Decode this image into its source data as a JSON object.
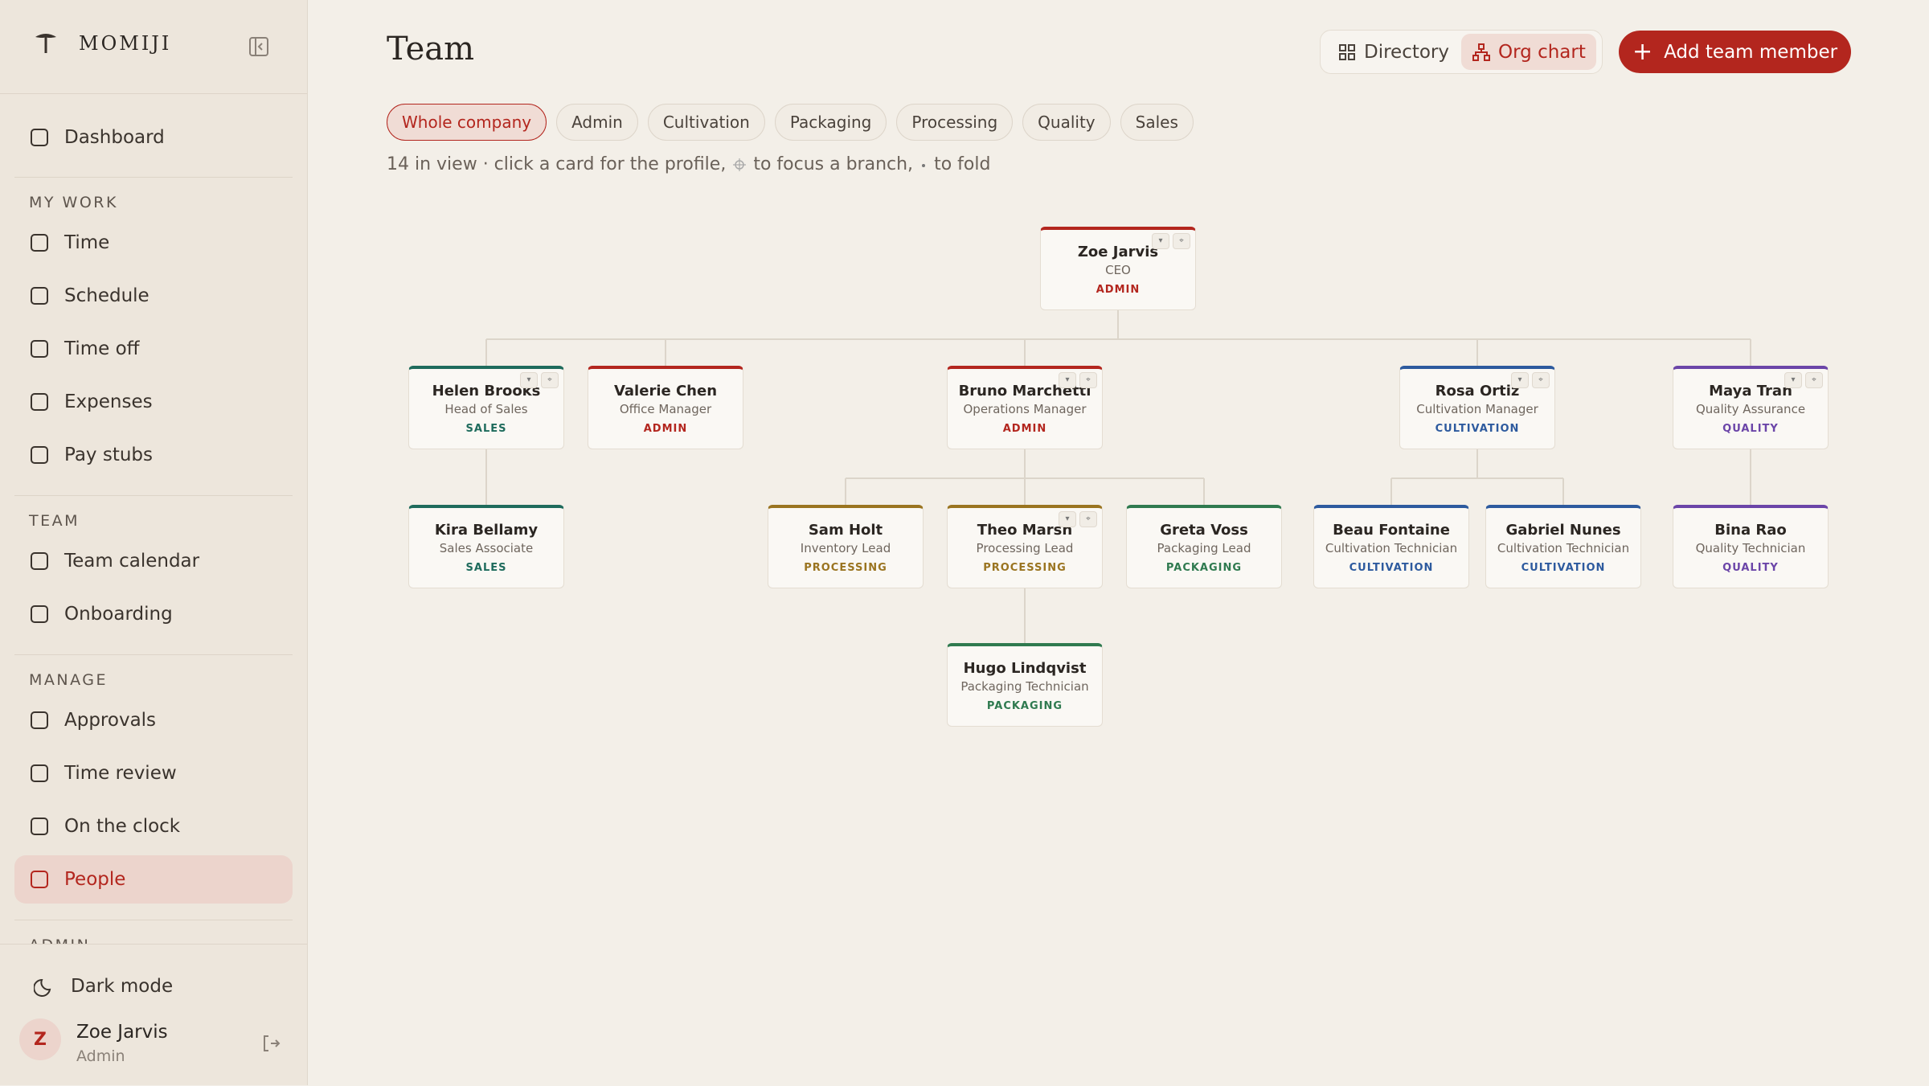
{
  "sidebar": {
    "brand": "MOMIJI",
    "top": [
      {
        "label": "Dashboard"
      }
    ],
    "sections": [
      {
        "title": "MY WORK",
        "items": [
          {
            "label": "Time"
          },
          {
            "label": "Schedule"
          },
          {
            "label": "Time off"
          },
          {
            "label": "Expenses"
          },
          {
            "label": "Pay stubs"
          }
        ]
      },
      {
        "title": "TEAM",
        "items": [
          {
            "label": "Team calendar"
          },
          {
            "label": "Onboarding"
          }
        ]
      },
      {
        "title": "MANAGE",
        "items": [
          {
            "label": "Approvals"
          },
          {
            "label": "Time review"
          },
          {
            "label": "On the clock"
          },
          {
            "label": "People"
          }
        ]
      },
      {
        "title": "ADMIN",
        "items": []
      }
    ],
    "footer": {
      "dark_mode": "Dark mode",
      "user": {
        "initial": "Z",
        "name": "Zoe Jarvis",
        "role": "Admin"
      }
    }
  },
  "header": {
    "title": "Team",
    "views": [
      "Directory",
      "Org chart"
    ],
    "add_button": "Add team member"
  },
  "filters": [
    "Whole company",
    "Admin",
    "Cultivation",
    "Packaging",
    "Processing",
    "Quality",
    "Sales"
  ],
  "hint": {
    "count": "14 in view · click a card for the profile,",
    "focus": "to focus a branch,",
    "fold": "to fold"
  },
  "org": {
    "root": {
      "name": "Zoe Jarvis",
      "role": "CEO",
      "dept": "ADMIN",
      "color": "#b3261e",
      "reports": [
        {
          "name": "Helen Brooks",
          "role": "Head of Sales",
          "dept": "SALES",
          "color": "#1e6b5c",
          "reports": [
            {
              "name": "Kira Bellamy",
              "role": "Sales Associate",
              "dept": "SALES",
              "color": "#1e6b5c",
              "reports": []
            }
          ]
        },
        {
          "name": "Valerie Chen",
          "role": "Office Manager",
          "dept": "ADMIN",
          "color": "#b3261e",
          "reports": []
        },
        {
          "name": "Bruno Marchetti",
          "role": "Operations Manager",
          "dept": "ADMIN",
          "color": "#b3261e",
          "reports": [
            {
              "name": "Sam Holt",
              "role": "Inventory Lead",
              "dept": "PROCESSING",
              "color": "#9a7420",
              "reports": []
            },
            {
              "name": "Theo Marsh",
              "role": "Processing Lead",
              "dept": "PROCESSING",
              "color": "#9a7420",
              "reports": [
                {
                  "name": "Hugo Lindqvist",
                  "role": "Packaging Technician",
                  "dept": "PACKAGING",
                  "color": "#2f7a4f",
                  "reports": []
                }
              ]
            },
            {
              "name": "Greta Voss",
              "role": "Packaging Lead",
              "dept": "PACKAGING",
              "color": "#2f7a4f",
              "reports": []
            }
          ]
        },
        {
          "name": "Rosa Ortiz",
          "role": "Cultivation Manager",
          "dept": "CULTIVATION",
          "color": "#2d5a9e",
          "reports": [
            {
              "name": "Beau Fontaine",
              "role": "Cultivation Technician",
              "dept": "CULTIVATION",
              "color": "#2d5a9e",
              "reports": []
            },
            {
              "name": "Gabriel Nunes",
              "role": "Cultivation Technician",
              "dept": "CULTIVATION",
              "color": "#2d5a9e",
              "reports": []
            }
          ]
        },
        {
          "name": "Maya Tran",
          "role": "Quality Assurance",
          "dept": "QUALITY",
          "color": "#6b45a8",
          "reports": [
            {
              "name": "Bina Rao",
              "role": "Quality Technician",
              "dept": "QUALITY",
              "color": "#6b45a8",
              "reports": []
            }
          ]
        }
      ]
    }
  }
}
